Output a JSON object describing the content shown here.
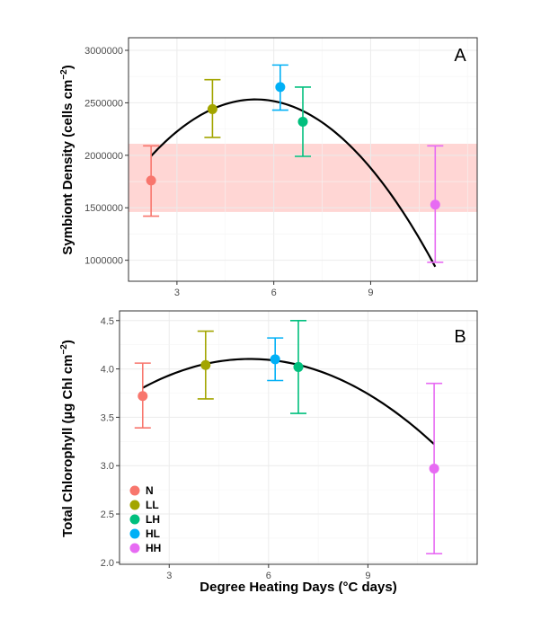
{
  "chart_data": [
    {
      "type": "scatter",
      "panel_label": "A",
      "ylabel": "Symbiont Density (cells cm⁻²)",
      "ylabel_main": "Symbiont Density (cells cm",
      "ylabel_sup": "−2",
      "ylabel_close": ")",
      "xlabel": "",
      "xlim": [
        1.5,
        12.3
      ],
      "ylim": [
        800000,
        3120000
      ],
      "x_ticks": [
        3,
        6,
        9
      ],
      "x_tick_labels": [
        "3",
        "6",
        "9"
      ],
      "y_ticks": [
        1000000,
        1500000,
        2000000,
        2500000,
        3000000
      ],
      "y_tick_labels": [
        "1000000",
        "1500000",
        "2000000",
        "2500000",
        "3000000"
      ],
      "grid": true,
      "band": {
        "ymin": 1460000,
        "ymax": 2110000,
        "color": "#ffd6d4"
      },
      "series": [
        {
          "name": "N",
          "color": "#f8766d",
          "x": 2.2,
          "y": 1760000,
          "ymin": 1420000,
          "ymax": 2090000
        },
        {
          "name": "LL",
          "color": "#a3a500",
          "x": 4.1,
          "y": 2440000,
          "ymin": 2170000,
          "ymax": 2720000
        },
        {
          "name": "HL",
          "color": "#00b0f6",
          "x": 6.2,
          "y": 2650000,
          "ymin": 2430000,
          "ymax": 2860000
        },
        {
          "name": "LH",
          "color": "#00bf7d",
          "x": 6.9,
          "y": 2320000,
          "ymin": 1990000,
          "ymax": 2650000
        },
        {
          "name": "HH",
          "color": "#e76bf3",
          "x": 11.0,
          "y": 1530000,
          "ymin": 980000,
          "ymax": 2090000
        }
      ],
      "fit": {
        "type": "quadratic",
        "x_range": [
          2.2,
          11.0
        ],
        "coef": [
          1010000,
          560000,
          -51500
        ]
      }
    },
    {
      "type": "scatter",
      "panel_label": "B",
      "ylabel": "Total Chlorophyll (µg Chl cm⁻²)",
      "ylabel_main": "Total Chlorophyll (µg Chl cm",
      "ylabel_sup": "−2",
      "ylabel_close": ")",
      "xlabel": "Degree Heating Days (°C days)",
      "xlim": [
        1.5,
        12.3
      ],
      "ylim": [
        1.98,
        4.6
      ],
      "x_ticks": [
        3,
        6,
        9
      ],
      "x_tick_labels": [
        "3",
        "6",
        "9"
      ],
      "y_ticks": [
        2.0,
        2.5,
        3.0,
        3.5,
        4.0,
        4.5
      ],
      "y_tick_labels": [
        "2.0",
        "2.5",
        "3.0",
        "3.5",
        "4.0",
        "4.5"
      ],
      "grid": true,
      "series": [
        {
          "name": "N",
          "color": "#f8766d",
          "x": 2.2,
          "y": 3.72,
          "ymin": 3.39,
          "ymax": 4.06
        },
        {
          "name": "LL",
          "color": "#a3a500",
          "x": 4.1,
          "y": 4.04,
          "ymin": 3.69,
          "ymax": 4.39
        },
        {
          "name": "HL",
          "color": "#00b0f6",
          "x": 6.2,
          "y": 4.1,
          "ymin": 3.88,
          "ymax": 4.32
        },
        {
          "name": "LH",
          "color": "#00bf7d",
          "x": 6.9,
          "y": 4.02,
          "ymin": 3.54,
          "ymax": 4.5
        },
        {
          "name": "HH",
          "color": "#e76bf3",
          "x": 11.0,
          "y": 2.97,
          "ymin": 2.09,
          "ymax": 3.85
        }
      ],
      "fit": {
        "type": "quadratic",
        "x_range": [
          2.2,
          11.0
        ],
        "coef": [
          3.26,
          0.31,
          -0.0285
        ]
      },
      "legend": {
        "placement": "bottom-left",
        "entries": [
          {
            "label": "N",
            "color": "#f8766d"
          },
          {
            "label": "LL",
            "color": "#a3a500"
          },
          {
            "label": "LH",
            "color": "#00bf7d"
          },
          {
            "label": "HL",
            "color": "#00b0f6"
          },
          {
            "label": "HH",
            "color": "#e76bf3"
          }
        ]
      }
    }
  ]
}
